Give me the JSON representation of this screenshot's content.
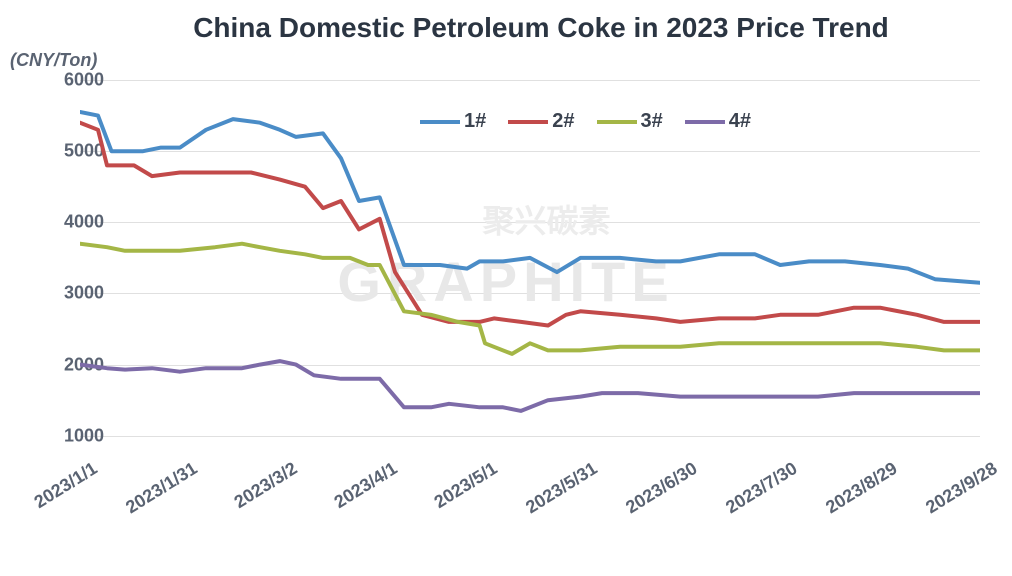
{
  "title": "China Domestic Petroleum Coke in 2023 Price Trend",
  "ylabel": "(CNY/Ton)",
  "watermark": "GRAPHITE",
  "watermark_cn": "聚兴碳素",
  "chart": {
    "type": "line",
    "background_color": "#ffffff",
    "grid_color": "#e0e0e0",
    "ymin": 800,
    "ymax": 6000,
    "yticks": [
      1000,
      2000,
      3000,
      4000,
      5000,
      6000
    ],
    "xlabels": [
      "2023/1/1",
      "2023/1/31",
      "2023/3/2",
      "2023/4/1",
      "2023/5/1",
      "2023/5/31",
      "2023/6/30",
      "2023/7/30",
      "2023/8/29",
      "2023/9/28"
    ],
    "x_positions": [
      0,
      0.111,
      0.222,
      0.333,
      0.444,
      0.556,
      0.667,
      0.778,
      0.889,
      1.0
    ],
    "line_width": 4,
    "title_fontsize": 28,
    "label_fontsize": 18,
    "tick_fontsize": 18,
    "legend_fontsize": 20,
    "series": [
      {
        "name": "1#",
        "color": "#4a8cc7",
        "points": [
          [
            0.0,
            5550
          ],
          [
            0.02,
            5500
          ],
          [
            0.035,
            5000
          ],
          [
            0.07,
            5000
          ],
          [
            0.09,
            5050
          ],
          [
            0.111,
            5050
          ],
          [
            0.14,
            5300
          ],
          [
            0.17,
            5450
          ],
          [
            0.2,
            5400
          ],
          [
            0.222,
            5300
          ],
          [
            0.24,
            5200
          ],
          [
            0.27,
            5250
          ],
          [
            0.29,
            4900
          ],
          [
            0.31,
            4300
          ],
          [
            0.333,
            4350
          ],
          [
            0.36,
            3400
          ],
          [
            0.4,
            3400
          ],
          [
            0.43,
            3350
          ],
          [
            0.444,
            3450
          ],
          [
            0.47,
            3450
          ],
          [
            0.5,
            3500
          ],
          [
            0.53,
            3300
          ],
          [
            0.556,
            3500
          ],
          [
            0.6,
            3500
          ],
          [
            0.64,
            3450
          ],
          [
            0.667,
            3450
          ],
          [
            0.71,
            3550
          ],
          [
            0.75,
            3550
          ],
          [
            0.778,
            3400
          ],
          [
            0.81,
            3450
          ],
          [
            0.85,
            3450
          ],
          [
            0.889,
            3400
          ],
          [
            0.92,
            3350
          ],
          [
            0.95,
            3200
          ],
          [
            1.0,
            3150
          ]
        ]
      },
      {
        "name": "2#",
        "color": "#c24a4a",
        "points": [
          [
            0.0,
            5400
          ],
          [
            0.02,
            5300
          ],
          [
            0.03,
            4800
          ],
          [
            0.06,
            4800
          ],
          [
            0.08,
            4650
          ],
          [
            0.111,
            4700
          ],
          [
            0.15,
            4700
          ],
          [
            0.19,
            4700
          ],
          [
            0.222,
            4600
          ],
          [
            0.25,
            4500
          ],
          [
            0.27,
            4200
          ],
          [
            0.29,
            4300
          ],
          [
            0.31,
            3900
          ],
          [
            0.333,
            4050
          ],
          [
            0.35,
            3300
          ],
          [
            0.38,
            2700
          ],
          [
            0.41,
            2600
          ],
          [
            0.444,
            2600
          ],
          [
            0.46,
            2650
          ],
          [
            0.49,
            2600
          ],
          [
            0.52,
            2550
          ],
          [
            0.54,
            2700
          ],
          [
            0.556,
            2750
          ],
          [
            0.6,
            2700
          ],
          [
            0.64,
            2650
          ],
          [
            0.667,
            2600
          ],
          [
            0.71,
            2650
          ],
          [
            0.75,
            2650
          ],
          [
            0.778,
            2700
          ],
          [
            0.82,
            2700
          ],
          [
            0.86,
            2800
          ],
          [
            0.889,
            2800
          ],
          [
            0.93,
            2700
          ],
          [
            0.96,
            2600
          ],
          [
            1.0,
            2600
          ]
        ]
      },
      {
        "name": "3#",
        "color": "#a4b646",
        "points": [
          [
            0.0,
            3700
          ],
          [
            0.03,
            3650
          ],
          [
            0.05,
            3600
          ],
          [
            0.08,
            3600
          ],
          [
            0.111,
            3600
          ],
          [
            0.15,
            3650
          ],
          [
            0.18,
            3700
          ],
          [
            0.2,
            3650
          ],
          [
            0.222,
            3600
          ],
          [
            0.25,
            3550
          ],
          [
            0.27,
            3500
          ],
          [
            0.3,
            3500
          ],
          [
            0.32,
            3400
          ],
          [
            0.333,
            3400
          ],
          [
            0.36,
            2750
          ],
          [
            0.39,
            2700
          ],
          [
            0.42,
            2600
          ],
          [
            0.444,
            2550
          ],
          [
            0.45,
            2300
          ],
          [
            0.48,
            2150
          ],
          [
            0.5,
            2300
          ],
          [
            0.52,
            2200
          ],
          [
            0.556,
            2200
          ],
          [
            0.6,
            2250
          ],
          [
            0.64,
            2250
          ],
          [
            0.667,
            2250
          ],
          [
            0.71,
            2300
          ],
          [
            0.75,
            2300
          ],
          [
            0.778,
            2300
          ],
          [
            0.82,
            2300
          ],
          [
            0.86,
            2300
          ],
          [
            0.889,
            2300
          ],
          [
            0.93,
            2250
          ],
          [
            0.96,
            2200
          ],
          [
            1.0,
            2200
          ]
        ]
      },
      {
        "name": "4#",
        "color": "#7d6ba8",
        "points": [
          [
            0.0,
            2000
          ],
          [
            0.03,
            1950
          ],
          [
            0.05,
            1930
          ],
          [
            0.08,
            1950
          ],
          [
            0.111,
            1900
          ],
          [
            0.14,
            1950
          ],
          [
            0.18,
            1950
          ],
          [
            0.2,
            2000
          ],
          [
            0.222,
            2050
          ],
          [
            0.24,
            2000
          ],
          [
            0.26,
            1850
          ],
          [
            0.29,
            1800
          ],
          [
            0.31,
            1800
          ],
          [
            0.333,
            1800
          ],
          [
            0.36,
            1400
          ],
          [
            0.39,
            1400
          ],
          [
            0.41,
            1450
          ],
          [
            0.444,
            1400
          ],
          [
            0.47,
            1400
          ],
          [
            0.49,
            1350
          ],
          [
            0.52,
            1500
          ],
          [
            0.556,
            1550
          ],
          [
            0.58,
            1600
          ],
          [
            0.62,
            1600
          ],
          [
            0.667,
            1550
          ],
          [
            0.71,
            1550
          ],
          [
            0.75,
            1550
          ],
          [
            0.778,
            1550
          ],
          [
            0.82,
            1550
          ],
          [
            0.86,
            1600
          ],
          [
            0.889,
            1600
          ],
          [
            0.93,
            1600
          ],
          [
            0.96,
            1600
          ],
          [
            1.0,
            1600
          ]
        ]
      }
    ]
  }
}
